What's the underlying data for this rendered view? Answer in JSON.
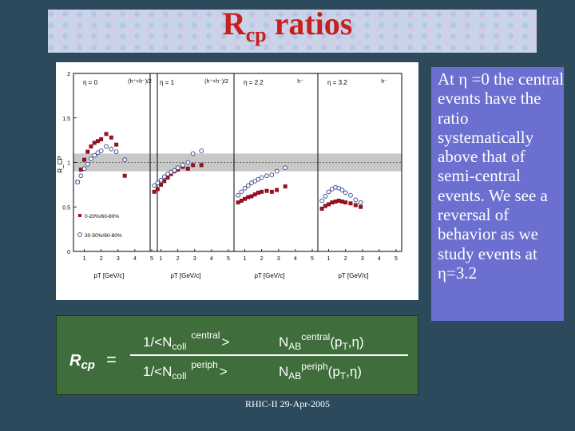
{
  "slide": {
    "title_main": "R",
    "title_sub": "cp",
    "title_rest": " ratios",
    "side_text": "At η =0 the central events have the ratio systematically above that of semi-central events. We see a reversal of behavior as we study events at η=3.2",
    "footer": "RHIC-II 29-Apr-2005"
  },
  "formula": {
    "lhs": "R",
    "lhs_sub": "cp",
    "equals": "=",
    "num_prefix": "1/<N",
    "num_sub": "coll",
    "num_sup": "central",
    "num_close": ">",
    "num_yield": "N",
    "num_yield_sub": "AB",
    "num_yield_sup": "central",
    "num_args": "(p",
    "num_args_sub": "T",
    "num_args_rest": ",η)",
    "den_prefix": "1/<N",
    "den_sub": "coll",
    "den_sup": "periph",
    "den_close": ">",
    "den_yield": "N",
    "den_yield_sub": "AB",
    "den_yield_sup": "periph",
    "den_args": "(p",
    "den_args_sub": "T",
    "den_args_rest": ",η)"
  },
  "chart_data": {
    "type": "scatter",
    "ylabel": "R_CP",
    "ylim": [
      0,
      2
    ],
    "y_ticks": [
      "0",
      "0.5",
      "1",
      "1.5",
      "2"
    ],
    "xlim": [
      0.5,
      5
    ],
    "x_ticks": [
      "1",
      "2",
      "3",
      "4",
      "5"
    ],
    "band": [
      0.9,
      1.1
    ],
    "legend": [
      {
        "marker": "filled-square",
        "label": "0-20%/60-80%"
      },
      {
        "marker": "open-circle",
        "label": "30-50%/60-80%"
      }
    ],
    "panels": [
      {
        "label": "η = 0",
        "charge_label": "(h⁺+h⁻)/2",
        "xlabel": "pT [GeV/c]",
        "series": [
          {
            "name": "0-20%/60-80%",
            "x": [
              0.6,
              0.8,
              1.0,
              1.2,
              1.4,
              1.6,
              1.8,
              2.0,
              2.3,
              2.6,
              2.9,
              3.4
            ],
            "y": [
              0.78,
              0.92,
              1.03,
              1.12,
              1.18,
              1.22,
              1.24,
              1.26,
              1.32,
              1.28,
              1.2,
              0.85
            ]
          },
          {
            "name": "30-50%/60-80%",
            "x": [
              0.6,
              0.8,
              1.0,
              1.2,
              1.4,
              1.6,
              1.8,
              2.0,
              2.3,
              2.6,
              2.9,
              3.4
            ],
            "y": [
              0.78,
              0.85,
              0.93,
              0.98,
              1.04,
              1.08,
              1.11,
              1.13,
              1.18,
              1.15,
              1.12,
              1.03
            ]
          }
        ]
      },
      {
        "label": "η = 1",
        "charge_label": "(h⁺+h⁻)/2",
        "xlabel": "pT [GeV/c]",
        "series": [
          {
            "name": "0-20%/60-80%",
            "x": [
              0.6,
              0.8,
              1.0,
              1.2,
              1.4,
              1.6,
              1.8,
              2.0,
              2.3,
              2.6,
              2.9,
              3.4
            ],
            "y": [
              0.67,
              0.7,
              0.75,
              0.79,
              0.83,
              0.87,
              0.9,
              0.92,
              0.95,
              0.93,
              0.97,
              0.97
            ]
          },
          {
            "name": "30-50%/60-80%",
            "x": [
              0.6,
              0.8,
              1.0,
              1.2,
              1.4,
              1.6,
              1.8,
              2.0,
              2.3,
              2.6,
              2.9,
              3.4
            ],
            "y": [
              0.74,
              0.77,
              0.8,
              0.84,
              0.87,
              0.89,
              0.91,
              0.94,
              0.97,
              1.0,
              1.1,
              1.13
            ]
          }
        ]
      },
      {
        "label": "η = 2.2",
        "charge_label": "h⁻",
        "xlabel": "pT [GeV/c]",
        "series": [
          {
            "name": "0-20%/60-80%",
            "x": [
              0.6,
              0.8,
              1.0,
              1.2,
              1.4,
              1.6,
              1.8,
              2.0,
              2.3,
              2.6,
              2.9,
              3.4
            ],
            "y": [
              0.55,
              0.57,
              0.59,
              0.61,
              0.62,
              0.64,
              0.66,
              0.67,
              0.68,
              0.67,
              0.69,
              0.73
            ]
          },
          {
            "name": "30-50%/60-80%",
            "x": [
              0.6,
              0.8,
              1.0,
              1.2,
              1.4,
              1.6,
              1.8,
              2.0,
              2.3,
              2.6,
              2.9,
              3.4
            ],
            "y": [
              0.63,
              0.67,
              0.71,
              0.74,
              0.77,
              0.79,
              0.81,
              0.83,
              0.85,
              0.86,
              0.9,
              0.94
            ]
          }
        ]
      },
      {
        "label": "η = 3.2",
        "charge_label": "h⁻",
        "xlabel": "pT [GeV/c]",
        "series": [
          {
            "name": "0-20%/60-80%",
            "x": [
              0.6,
              0.8,
              1.0,
              1.2,
              1.4,
              1.6,
              1.8,
              2.0,
              2.3,
              2.6,
              2.9
            ],
            "y": [
              0.48,
              0.51,
              0.53,
              0.55,
              0.56,
              0.57,
              0.56,
              0.55,
              0.54,
              0.52,
              0.5
            ]
          },
          {
            "name": "30-50%/60-80%",
            "x": [
              0.6,
              0.8,
              1.0,
              1.2,
              1.4,
              1.6,
              1.8,
              2.0,
              2.3,
              2.6,
              2.9
            ],
            "y": [
              0.57,
              0.62,
              0.67,
              0.7,
              0.72,
              0.71,
              0.69,
              0.66,
              0.63,
              0.58,
              0.55
            ]
          }
        ]
      }
    ]
  }
}
